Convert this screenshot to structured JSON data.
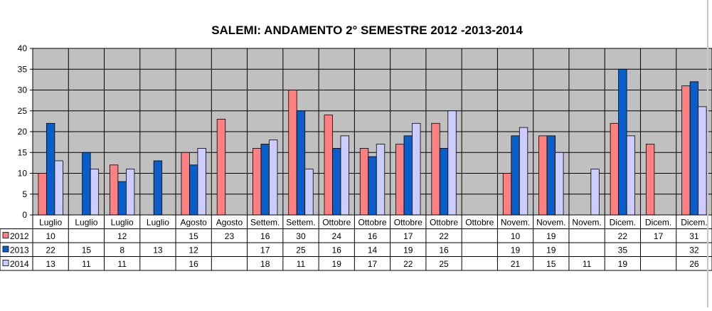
{
  "chart_data": {
    "type": "bar",
    "title": "SALEMI: ANDAMENTO 2° SEMESTRE 2012 -2013-2014",
    "xlabel": "",
    "ylabel": "",
    "ylim": [
      0,
      40
    ],
    "yticks": [
      0,
      5,
      10,
      15,
      20,
      25,
      30,
      35,
      40
    ],
    "grid": true,
    "plot_background": "#c0c0c0",
    "legend": "data-table-left",
    "categories": [
      "Luglio",
      "Luglio",
      "Luglio",
      "Luglio",
      "Agosto",
      "Agosto",
      "Settem.",
      "Settem.",
      "Ottobre",
      "Ottobre",
      "Ottobre",
      "Ottobre",
      "Ottobre",
      "Novem.",
      "Novem.",
      "Novem.",
      "Dicem.",
      "Dicem.",
      "Dicem."
    ],
    "series": [
      {
        "name": "2012",
        "color": "#ff8080",
        "values": [
          10,
          null,
          12,
          null,
          15,
          23,
          16,
          30,
          24,
          16,
          17,
          22,
          null,
          10,
          19,
          null,
          22,
          17,
          31
        ]
      },
      {
        "name": "2013",
        "color": "#0a5ec8",
        "values": [
          22,
          15,
          8,
          13,
          12,
          null,
          17,
          25,
          16,
          14,
          19,
          16,
          null,
          19,
          19,
          null,
          35,
          null,
          32
        ]
      },
      {
        "name": "2014",
        "color": "#ccccff",
        "values": [
          13,
          11,
          11,
          null,
          16,
          null,
          18,
          11,
          19,
          17,
          22,
          25,
          null,
          21,
          15,
          11,
          19,
          null,
          26
        ]
      }
    ]
  }
}
